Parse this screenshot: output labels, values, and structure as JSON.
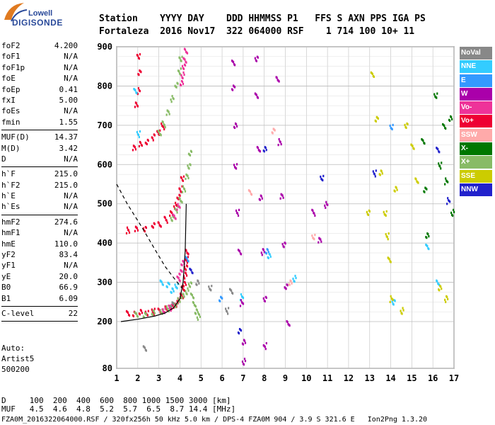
{
  "logo": {
    "line1": "Lowell",
    "line2": "DIGISONDE"
  },
  "header": {
    "labels": "Station    YYYY DAY    DDD HHMMSS P1   FFS S AXN PPS IGA PS",
    "values": "Fortaleza  2016 Nov17  322 064000 RSF    1 714 100 10+ 11"
  },
  "params": [
    {
      "label": "foF2",
      "value": "4.200"
    },
    {
      "label": "foF1",
      "value": "N/A"
    },
    {
      "label": "foF1p",
      "value": "N/A"
    },
    {
      "label": "foE",
      "value": "N/A"
    },
    {
      "label": "foEp",
      "value": "0.41"
    },
    {
      "label": "fxI",
      "value": "5.00"
    },
    {
      "label": "foEs",
      "value": "N/A"
    },
    {
      "label": "fmin",
      "value": "1.55"
    },
    {
      "sep": true
    },
    {
      "label": "MUF(D)",
      "value": "14.37"
    },
    {
      "label": "M(D)",
      "value": "3.42"
    },
    {
      "label": "D",
      "value": "N/A"
    },
    {
      "sep": true
    },
    {
      "label": "h`F",
      "value": "215.0"
    },
    {
      "label": "h`F2",
      "value": "215.0"
    },
    {
      "label": "h`E",
      "value": "N/A"
    },
    {
      "label": "h`Es",
      "value": "N/A"
    },
    {
      "sep": true
    },
    {
      "label": "hmF2",
      "value": "274.6"
    },
    {
      "label": "hmF1",
      "value": "N/A"
    },
    {
      "label": "hmE",
      "value": "110.0"
    },
    {
      "label": "yF2",
      "value": "83.4"
    },
    {
      "label": "yF1",
      "value": "N/A"
    },
    {
      "label": "yE",
      "value": "20.0"
    },
    {
      "label": "B0",
      "value": "66.9"
    },
    {
      "label": "B1",
      "value": "6.09"
    },
    {
      "sep": true
    },
    {
      "label": "C-level",
      "value": "22"
    },
    {
      "sep": true
    }
  ],
  "auto": {
    "line1": "Auto:",
    "line2": "Artist5",
    "line3": "500200"
  },
  "legend": [
    {
      "label": "NoVal",
      "color": "#888888"
    },
    {
      "label": "NNE",
      "color": "#33ccff"
    },
    {
      "label": "E",
      "color": "#3399ff"
    },
    {
      "label": "W",
      "color": "#aa00aa"
    },
    {
      "label": "Vo-",
      "color": "#ee3399"
    },
    {
      "label": "Vo+",
      "color": "#ee0033"
    },
    {
      "label": "SSW",
      "color": "#ffaaaa"
    },
    {
      "label": "X-",
      "color": "#007700"
    },
    {
      "label": "X+",
      "color": "#88bb66"
    },
    {
      "label": "SSE",
      "color": "#cccc00"
    },
    {
      "label": "NNW",
      "color": "#2222cc"
    }
  ],
  "footer": {
    "line1": "D     100  200  400  600  800 1000 1500 3000 [km]",
    "line2": "MUF   4.5  4.6  4.8  5.2  5.7  6.5  8.7 14.4 [MHz]",
    "status": "FZA0M_2016322064000.RSF / 320fx256h 50 kHz 5.0 km / DPS-4 FZA0M 904 / 3.9 S 321.6 E   Ion2Png 1.3.20"
  },
  "chart_data": {
    "type": "scatter",
    "title": "",
    "xlabel": "",
    "ylabel": "",
    "x_ticks": [
      1,
      2,
      3,
      4,
      5,
      6,
      7,
      8,
      9,
      10,
      11,
      12,
      13,
      14,
      15,
      16,
      17
    ],
    "y_ticks": [
      80,
      200,
      300,
      400,
      500,
      600,
      700,
      800,
      900
    ],
    "xlim": [
      1,
      17
    ],
    "ylim": [
      80,
      900
    ],
    "grid": true,
    "legend_position": "right",
    "profile_line": {
      "color": "#000000",
      "style": "solid",
      "points": [
        [
          1.2,
          200
        ],
        [
          2.0,
          206
        ],
        [
          2.8,
          214
        ],
        [
          3.3,
          222
        ],
        [
          3.7,
          235
        ],
        [
          4.0,
          258
        ],
        [
          4.15,
          300
        ],
        [
          4.25,
          380
        ],
        [
          4.3,
          500
        ]
      ]
    },
    "profile_dashed": {
      "color": "#000000",
      "style": "dashed",
      "points": [
        [
          1.0,
          550
        ],
        [
          1.5,
          500
        ],
        [
          2.2,
          440
        ],
        [
          2.8,
          385
        ],
        [
          3.3,
          340
        ],
        [
          3.8,
          305
        ],
        [
          4.1,
          285
        ]
      ]
    },
    "traces": [
      {
        "name": "Vo+",
        "color": "#ee0033",
        "points": [
          [
            1.5,
            222
          ],
          [
            1.8,
            224
          ],
          [
            2.1,
            225
          ],
          [
            2.4,
            226
          ],
          [
            2.7,
            228
          ],
          [
            3.0,
            230
          ],
          [
            3.3,
            234
          ],
          [
            3.6,
            240
          ],
          [
            3.8,
            248
          ],
          [
            3.95,
            258
          ],
          [
            4.05,
            270
          ],
          [
            4.12,
            285
          ],
          [
            4.18,
            300
          ],
          [
            4.22,
            320
          ],
          [
            4.25,
            340
          ],
          [
            4.28,
            360
          ],
          [
            4.3,
            380
          ],
          [
            1.5,
            435
          ],
          [
            1.9,
            437
          ],
          [
            2.3,
            440
          ],
          [
            2.7,
            446
          ],
          [
            3.0,
            452
          ],
          [
            3.3,
            462
          ],
          [
            3.55,
            478
          ],
          [
            3.75,
            498
          ],
          [
            3.9,
            520
          ],
          [
            4.0,
            540
          ],
          [
            4.08,
            565
          ],
          [
            1.8,
            647
          ],
          [
            2.1,
            653
          ],
          [
            2.4,
            662
          ],
          [
            2.7,
            672
          ],
          [
            2.95,
            684
          ],
          [
            3.15,
            700
          ],
          [
            1.9,
            755
          ],
          [
            2.0,
            790
          ],
          [
            2.05,
            835
          ],
          [
            2.0,
            880
          ]
        ]
      },
      {
        "name": "X+",
        "color": "#88bb66",
        "points": [
          [
            1.9,
            219
          ],
          [
            2.3,
            221
          ],
          [
            2.7,
            224
          ],
          [
            3.1,
            230
          ],
          [
            3.4,
            236
          ],
          [
            3.7,
            245
          ],
          [
            3.9,
            255
          ],
          [
            4.1,
            268
          ],
          [
            4.3,
            280
          ],
          [
            4.45,
            295
          ],
          [
            4.55,
            270
          ],
          [
            4.65,
            245
          ],
          [
            4.75,
            230
          ],
          [
            4.85,
            215
          ],
          [
            3.6,
            465
          ],
          [
            3.8,
            488
          ],
          [
            4.0,
            512
          ],
          [
            4.15,
            540
          ],
          [
            4.3,
            570
          ],
          [
            4.4,
            600
          ],
          [
            4.45,
            630
          ],
          [
            3.0,
            685
          ],
          [
            3.2,
            705
          ],
          [
            3.4,
            735
          ],
          [
            3.6,
            770
          ],
          [
            3.8,
            805
          ],
          [
            3.95,
            840
          ],
          [
            4.0,
            870
          ]
        ]
      },
      {
        "name": "Vo-",
        "color": "#ee3399",
        "points": [
          [
            3.9,
            310
          ],
          [
            4.0,
            330
          ],
          [
            4.1,
            350
          ],
          [
            3.2,
            232
          ],
          [
            3.5,
            238
          ],
          [
            3.7,
            470
          ],
          [
            3.9,
            495
          ],
          [
            4.05,
            810
          ],
          [
            4.1,
            830
          ],
          [
            4.15,
            850
          ],
          [
            4.2,
            870
          ],
          [
            4.25,
            890
          ]
        ]
      },
      {
        "name": "NNE",
        "color": "#33ccff",
        "points": [
          [
            3.1,
            300
          ],
          [
            3.4,
            298
          ],
          [
            3.6,
            280
          ],
          [
            3.8,
            295
          ],
          [
            2.0,
            680
          ],
          [
            1.85,
            790
          ],
          [
            6.9,
            265
          ],
          [
            8.2,
            370
          ],
          [
            9.4,
            312
          ],
          [
            14.1,
            250
          ],
          [
            15.7,
            395
          ],
          [
            16.2,
            300
          ]
        ]
      },
      {
        "name": "W",
        "color": "#aa00aa",
        "points": [
          [
            6.5,
            860
          ],
          [
            6.5,
            800
          ],
          [
            6.6,
            700
          ],
          [
            6.6,
            600
          ],
          [
            6.7,
            480
          ],
          [
            6.8,
            380
          ],
          [
            6.9,
            250
          ],
          [
            7.0,
            150
          ],
          [
            7.0,
            100
          ],
          [
            7.6,
            870
          ],
          [
            7.6,
            780
          ],
          [
            7.7,
            640
          ],
          [
            7.8,
            520
          ],
          [
            7.9,
            380
          ],
          [
            8.0,
            260
          ],
          [
            8.0,
            140
          ],
          [
            8.6,
            820
          ],
          [
            8.7,
            660
          ],
          [
            8.8,
            520
          ],
          [
            8.9,
            400
          ],
          [
            9.0,
            290
          ],
          [
            9.1,
            200
          ],
          [
            10.3,
            480
          ],
          [
            10.6,
            410
          ],
          [
            10.9,
            500
          ]
        ]
      },
      {
        "name": "X-",
        "color": "#007700",
        "points": [
          [
            15.5,
            660
          ],
          [
            15.6,
            540
          ],
          [
            15.7,
            420
          ],
          [
            16.1,
            780
          ],
          [
            16.3,
            600
          ],
          [
            16.5,
            700
          ],
          [
            16.6,
            560
          ],
          [
            16.8,
            720
          ],
          [
            16.9,
            480
          ]
        ]
      },
      {
        "name": "SSE",
        "color": "#cccc00",
        "points": [
          [
            13.1,
            830
          ],
          [
            13.3,
            720
          ],
          [
            13.5,
            580
          ],
          [
            13.7,
            480
          ],
          [
            13.8,
            420
          ],
          [
            13.9,
            360
          ],
          [
            14.0,
            260
          ],
          [
            14.2,
            540
          ],
          [
            14.5,
            230
          ],
          [
            14.7,
            700
          ],
          [
            15.0,
            650
          ],
          [
            15.2,
            560
          ],
          [
            16.3,
            290
          ],
          [
            16.6,
            260
          ],
          [
            12.9,
            480
          ]
        ]
      },
      {
        "name": "NNW",
        "color": "#2222cc",
        "points": [
          [
            4.5,
            330
          ],
          [
            6.8,
            180
          ],
          [
            8.0,
            640
          ],
          [
            10.7,
            570
          ],
          [
            13.2,
            580
          ],
          [
            16.2,
            640
          ],
          [
            16.7,
            510
          ]
        ]
      },
      {
        "name": "E",
        "color": "#3399ff",
        "points": [
          [
            4.3,
            360
          ],
          [
            5.9,
            262
          ],
          [
            8.1,
            380
          ],
          [
            14.0,
            700
          ]
        ]
      },
      {
        "name": "SSW",
        "color": "#ffaaaa",
        "points": [
          [
            7.3,
            530
          ],
          [
            8.4,
            690
          ],
          [
            9.2,
            300
          ],
          [
            10.3,
            420
          ]
        ]
      },
      {
        "name": "NoVal",
        "color": "#888888",
        "points": [
          [
            2.3,
            132
          ],
          [
            3.6,
            248
          ],
          [
            4.8,
            300
          ],
          [
            5.4,
            290
          ],
          [
            6.2,
            230
          ],
          [
            6.4,
            280
          ]
        ]
      }
    ]
  }
}
